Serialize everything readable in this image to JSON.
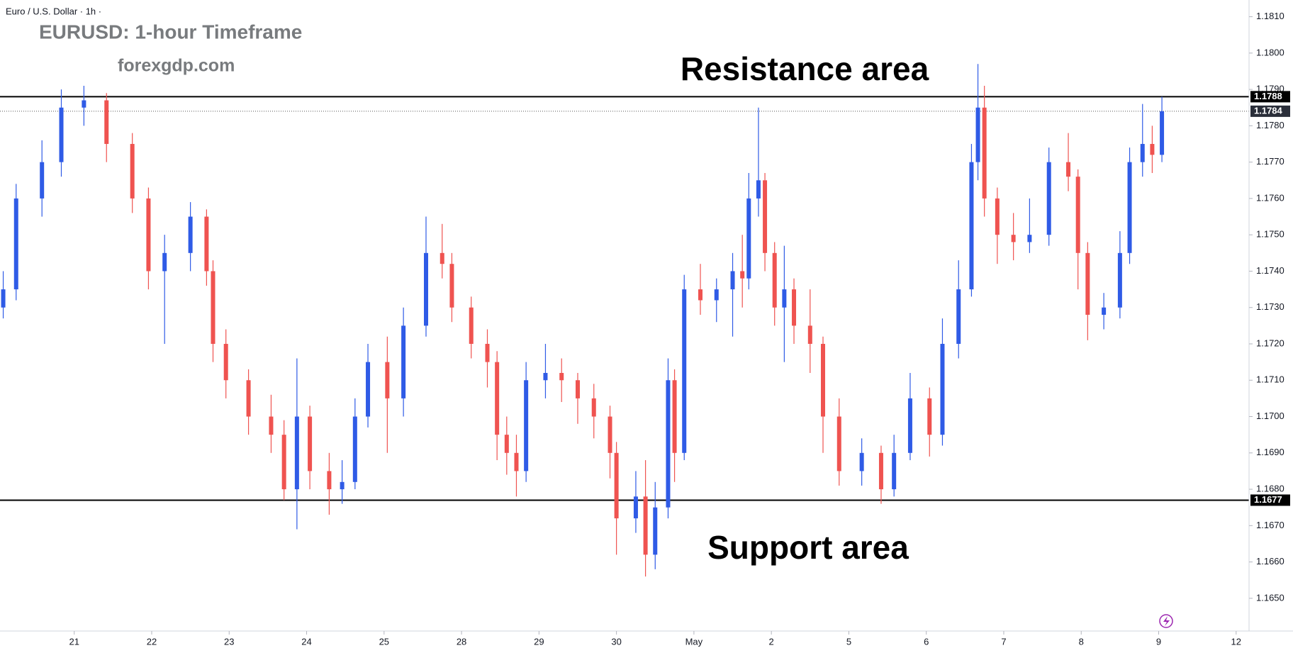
{
  "chart_data": {
    "type": "candlestick",
    "header": "Euro / U.S. Dollar · 1h ·",
    "title": "EURUSD: 1-hour Timeframe",
    "subtitle": "forexgdp.com",
    "annotations": [
      "Resistance area",
      "Support area"
    ],
    "up_color": "#2f5be6",
    "down_color": "#ef5350",
    "x": [
      2,
      6,
      14,
      20,
      27,
      34,
      42,
      47,
      52,
      60,
      65,
      67,
      71,
      78,
      85,
      89,
      93,
      97,
      103,
      107,
      111,
      115,
      121,
      126,
      133,
      138,
      141,
      147,
      152,
      155,
      158,
      161,
      164,
      170,
      175,
      180,
      185,
      190,
      192,
      198,
      201,
      204,
      208,
      210,
      213,
      218,
      223,
      228,
      231,
      233,
      236,
      238,
      241,
      244,
      247,
      252,
      256,
      261,
      268,
      274,
      278,
      283,
      289,
      293,
      298,
      302,
      304,
      306,
      310,
      315,
      320,
      326,
      332,
      335,
      338,
      343,
      348,
      351,
      355,
      358,
      361
    ],
    "open": [
      1.173,
      1.1735,
      1.176,
      1.177,
      1.1785,
      1.1787,
      1.1775,
      1.176,
      1.174,
      1.1745,
      1.1755,
      1.174,
      1.172,
      1.171,
      1.17,
      1.1695,
      1.168,
      1.17,
      1.1685,
      1.168,
      1.1682,
      1.17,
      1.1715,
      1.1705,
      1.1725,
      1.1745,
      1.1742,
      1.173,
      1.172,
      1.1715,
      1.1695,
      1.169,
      1.1685,
      1.171,
      1.1712,
      1.171,
      1.1705,
      1.17,
      1.169,
      1.1672,
      1.1678,
      1.1662,
      1.1675,
      1.171,
      1.169,
      1.1735,
      1.1732,
      1.1735,
      1.174,
      1.1738,
      1.176,
      1.1765,
      1.1745,
      1.173,
      1.1735,
      1.1725,
      1.172,
      1.17,
      1.1685,
      1.169,
      1.168,
      1.169,
      1.1705,
      1.1695,
      1.172,
      1.1735,
      1.177,
      1.1785,
      1.176,
      1.175,
      1.1748,
      1.175,
      1.177,
      1.1766,
      1.1745,
      1.1728,
      1.173,
      1.1745,
      1.177,
      1.1775,
      1.1772
    ],
    "high": [
      1.174,
      1.1764,
      1.1776,
      1.179,
      1.1791,
      1.1789,
      1.1778,
      1.1763,
      1.175,
      1.1759,
      1.1757,
      1.1743,
      1.1724,
      1.1713,
      1.1706,
      1.1699,
      1.1716,
      1.1703,
      1.169,
      1.1688,
      1.1705,
      1.172,
      1.1722,
      1.173,
      1.1755,
      1.1753,
      1.1745,
      1.1733,
      1.1724,
      1.1718,
      1.17,
      1.1695,
      1.1715,
      1.172,
      1.1716,
      1.1712,
      1.1709,
      1.1703,
      1.1693,
      1.1685,
      1.1688,
      1.1682,
      1.1716,
      1.1713,
      1.1739,
      1.1742,
      1.1738,
      1.1745,
      1.175,
      1.1767,
      1.1785,
      1.1767,
      1.1748,
      1.1747,
      1.1738,
      1.1735,
      1.1722,
      1.1705,
      1.1694,
      1.1692,
      1.1695,
      1.1712,
      1.1708,
      1.1727,
      1.1743,
      1.1775,
      1.1797,
      1.1791,
      1.1763,
      1.1756,
      1.176,
      1.1774,
      1.1778,
      1.1768,
      1.1748,
      1.1734,
      1.1751,
      1.1774,
      1.1786,
      1.178,
      1.1788
    ],
    "low": [
      1.1727,
      1.1732,
      1.1755,
      1.1766,
      1.178,
      1.177,
      1.1756,
      1.1735,
      1.172,
      1.174,
      1.1736,
      1.1715,
      1.1705,
      1.1695,
      1.169,
      1.1677,
      1.1669,
      1.168,
      1.1673,
      1.1676,
      1.168,
      1.1697,
      1.169,
      1.17,
      1.1722,
      1.1738,
      1.1726,
      1.1716,
      1.1708,
      1.1688,
      1.1684,
      1.1678,
      1.1682,
      1.1705,
      1.1704,
      1.1698,
      1.1694,
      1.1683,
      1.1662,
      1.1668,
      1.1656,
      1.1658,
      1.1672,
      1.1682,
      1.1688,
      1.1728,
      1.1726,
      1.1722,
      1.173,
      1.1735,
      1.1755,
      1.174,
      1.1725,
      1.1715,
      1.172,
      1.1712,
      1.169,
      1.1681,
      1.1681,
      1.1676,
      1.1678,
      1.1688,
      1.1689,
      1.1692,
      1.1716,
      1.1733,
      1.1765,
      1.1755,
      1.1742,
      1.1743,
      1.1745,
      1.1747,
      1.1762,
      1.1735,
      1.1721,
      1.1724,
      1.1727,
      1.1742,
      1.1766,
      1.1767,
      1.177
    ],
    "close": [
      1.1735,
      1.176,
      1.177,
      1.1785,
      1.1787,
      1.1775,
      1.176,
      1.174,
      1.1745,
      1.1755,
      1.174,
      1.172,
      1.171,
      1.17,
      1.1695,
      1.168,
      1.17,
      1.1685,
      1.168,
      1.1682,
      1.17,
      1.1715,
      1.1705,
      1.1725,
      1.1745,
      1.1742,
      1.173,
      1.172,
      1.1715,
      1.1695,
      1.169,
      1.1685,
      1.171,
      1.1712,
      1.171,
      1.1705,
      1.17,
      1.169,
      1.1672,
      1.1678,
      1.1662,
      1.1675,
      1.171,
      1.169,
      1.1735,
      1.1732,
      1.1735,
      1.174,
      1.1738,
      1.176,
      1.1765,
      1.1745,
      1.173,
      1.1735,
      1.1725,
      1.172,
      1.17,
      1.1685,
      1.169,
      1.168,
      1.169,
      1.1705,
      1.1695,
      1.172,
      1.1735,
      1.177,
      1.1785,
      1.176,
      1.175,
      1.1748,
      1.175,
      1.177,
      1.1766,
      1.1745,
      1.1728,
      1.173,
      1.1745,
      1.177,
      1.1775,
      1.1772,
      1.1784
    ],
    "resistance": 1.1788,
    "support": 1.1677,
    "last_price": 1.1784,
    "xlim": [
      1,
      388
    ],
    "xticks": [
      {
        "value": 24,
        "label": "21"
      },
      {
        "value": 48,
        "label": "22"
      },
      {
        "value": 72,
        "label": "23"
      },
      {
        "value": 96,
        "label": "24"
      },
      {
        "value": 120,
        "label": "25"
      },
      {
        "value": 144,
        "label": "28"
      },
      {
        "value": 168,
        "label": "29"
      },
      {
        "value": 192,
        "label": "30"
      },
      {
        "value": 216,
        "label": "May"
      },
      {
        "value": 240,
        "label": "2"
      },
      {
        "value": 264,
        "label": "5"
      },
      {
        "value": 288,
        "label": "6"
      },
      {
        "value": 312,
        "label": "7"
      },
      {
        "value": 336,
        "label": "8"
      },
      {
        "value": 360,
        "label": "9"
      },
      {
        "value": 384,
        "label": "12"
      }
    ],
    "ylim": [
      1.1641,
      1.18146
    ],
    "yticks": [
      {
        "value": 1.165,
        "label": "1.1650"
      },
      {
        "value": 1.166,
        "label": "1.1660"
      },
      {
        "value": 1.167,
        "label": "1.1670"
      },
      {
        "value": 1.168,
        "label": "1.1680"
      },
      {
        "value": 1.169,
        "label": "1.1690"
      },
      {
        "value": 1.17,
        "label": "1.1700"
      },
      {
        "value": 1.171,
        "label": "1.1710"
      },
      {
        "value": 1.172,
        "label": "1.1720"
      },
      {
        "value": 1.173,
        "label": "1.1730"
      },
      {
        "value": 1.174,
        "label": "1.1740"
      },
      {
        "value": 1.175,
        "label": "1.1750"
      },
      {
        "value": 1.176,
        "label": "1.1760"
      },
      {
        "value": 1.177,
        "label": "1.1770"
      },
      {
        "value": 1.178,
        "label": "1.1780"
      },
      {
        "value": 1.179,
        "label": "1.1790"
      },
      {
        "value": 1.18,
        "label": "1.1800"
      },
      {
        "value": 1.181,
        "label": "1.1810"
      }
    ]
  }
}
